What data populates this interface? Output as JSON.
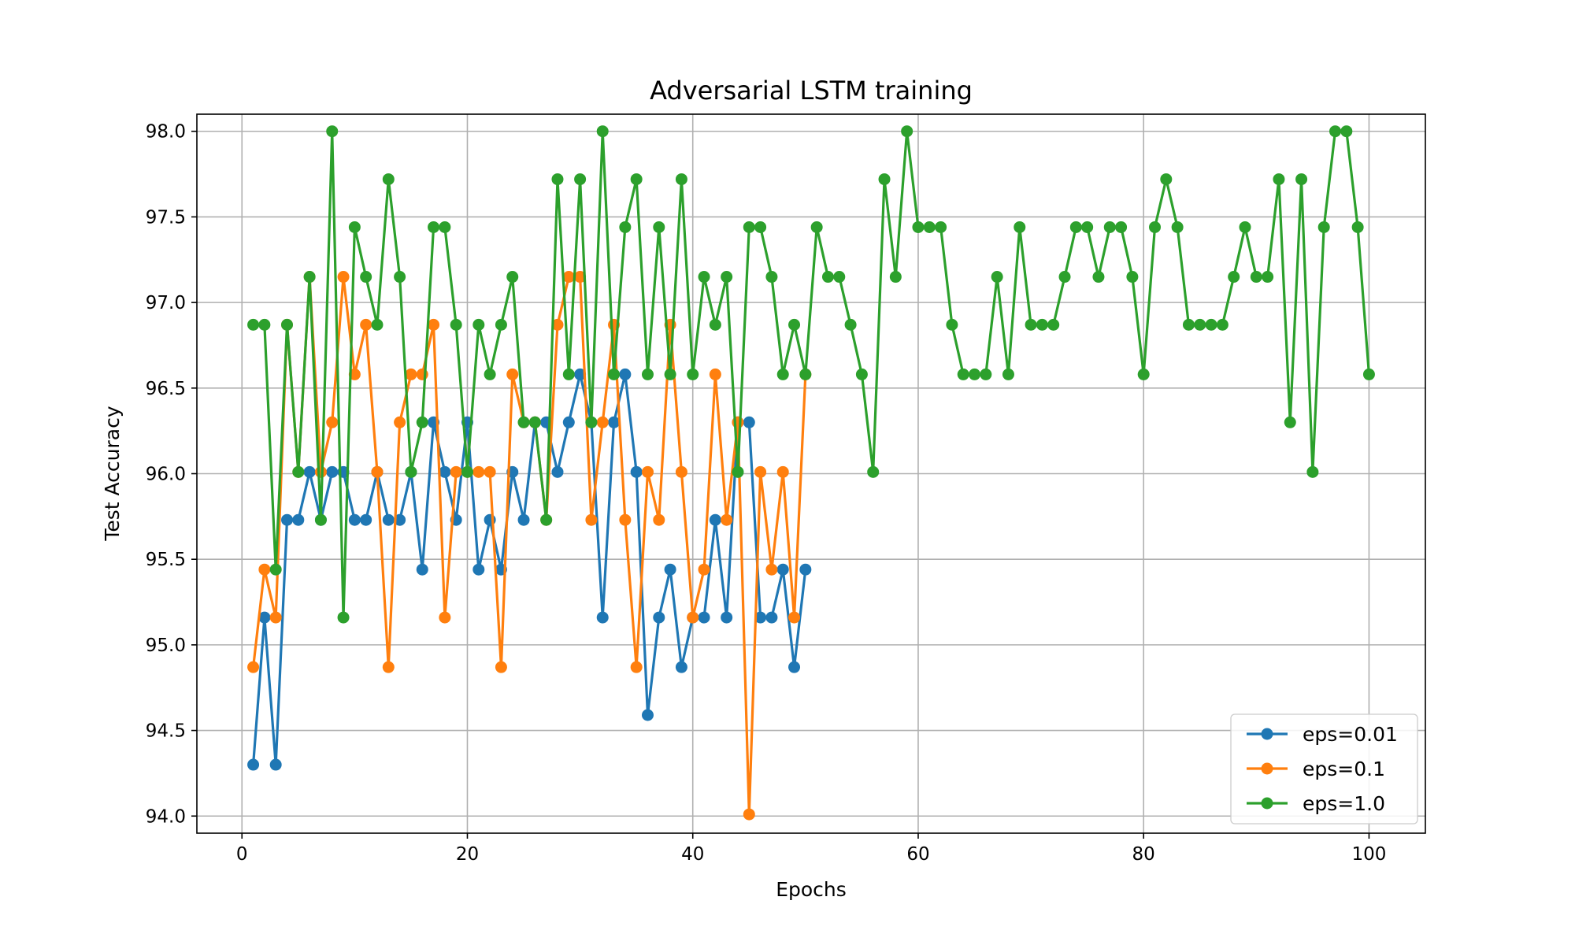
{
  "chart_data": {
    "type": "line",
    "title": "Adversarial LSTM training",
    "xlabel": "Epochs",
    "ylabel": "Test Accuracy",
    "xlim": [
      -4,
      105
    ],
    "ylim": [
      93.9,
      98.1
    ],
    "xticks": [
      0,
      20,
      40,
      60,
      80,
      100
    ],
    "yticks": [
      94.0,
      94.5,
      95.0,
      95.5,
      96.0,
      96.5,
      97.0,
      97.5,
      98.0
    ],
    "ytick_labels": [
      "94.0",
      "94.5",
      "95.0",
      "95.5",
      "96.0",
      "96.5",
      "97.0",
      "97.5",
      "98.0"
    ],
    "grid": true,
    "legend_position": "lower-right",
    "series": [
      {
        "name": "eps=0.01",
        "color": "#1f77b4",
        "x": [
          1,
          2,
          3,
          4,
          5,
          6,
          7,
          8,
          9,
          10,
          11,
          12,
          13,
          14,
          15,
          16,
          17,
          18,
          19,
          20,
          21,
          22,
          23,
          24,
          25,
          26,
          27,
          28,
          29,
          30,
          31,
          32,
          33,
          34,
          35,
          36,
          37,
          38,
          39,
          40,
          41,
          42,
          43,
          44,
          45,
          46,
          47,
          48,
          49,
          50
        ],
        "y": [
          94.3,
          95.16,
          94.3,
          95.73,
          95.73,
          96.01,
          95.73,
          96.01,
          96.01,
          95.73,
          95.73,
          96.01,
          95.73,
          95.73,
          96.01,
          95.44,
          96.3,
          96.01,
          95.73,
          96.3,
          95.44,
          95.73,
          95.44,
          96.01,
          95.73,
          96.3,
          96.3,
          96.01,
          96.3,
          96.58,
          96.3,
          95.16,
          96.3,
          96.58,
          96.01,
          94.59,
          95.16,
          95.44,
          94.87,
          95.16,
          95.16,
          95.73,
          95.16,
          96.3,
          96.3,
          95.16,
          95.16,
          95.44,
          94.87,
          95.44
        ]
      },
      {
        "name": "eps=0.1",
        "color": "#ff7f0e",
        "x": [
          1,
          2,
          3,
          4,
          5,
          6,
          7,
          8,
          9,
          10,
          11,
          12,
          13,
          14,
          15,
          16,
          17,
          18,
          19,
          20,
          21,
          22,
          23,
          24,
          25,
          26,
          27,
          28,
          29,
          30,
          31,
          32,
          33,
          34,
          35,
          36,
          37,
          38,
          39,
          40,
          41,
          42,
          43,
          44,
          45,
          46,
          47,
          48,
          49,
          50
        ],
        "y": [
          94.87,
          95.44,
          95.16,
          96.87,
          96.01,
          97.15,
          96.01,
          96.3,
          97.15,
          96.58,
          96.87,
          96.01,
          94.87,
          96.3,
          96.58,
          96.58,
          96.87,
          95.16,
          96.01,
          96.01,
          96.01,
          96.01,
          94.87,
          96.58,
          96.3,
          96.3,
          95.73,
          96.87,
          97.15,
          97.15,
          95.73,
          96.3,
          96.87,
          95.73,
          94.87,
          96.01,
          95.73,
          96.87,
          96.01,
          95.16,
          95.44,
          96.58,
          95.73,
          96.3,
          94.01,
          96.01,
          95.44,
          96.01,
          95.16,
          96.58
        ]
      },
      {
        "name": "eps=1.0",
        "color": "#2ca02c",
        "x": [
          1,
          2,
          3,
          4,
          5,
          6,
          7,
          8,
          9,
          10,
          11,
          12,
          13,
          14,
          15,
          16,
          17,
          18,
          19,
          20,
          21,
          22,
          23,
          24,
          25,
          26,
          27,
          28,
          29,
          30,
          31,
          32,
          33,
          34,
          35,
          36,
          37,
          38,
          39,
          40,
          41,
          42,
          43,
          44,
          45,
          46,
          47,
          48,
          49,
          50,
          51,
          52,
          53,
          54,
          55,
          56,
          57,
          58,
          59,
          60,
          61,
          62,
          63,
          64,
          65,
          66,
          67,
          68,
          69,
          70,
          71,
          72,
          73,
          74,
          75,
          76,
          77,
          78,
          79,
          80,
          81,
          82,
          83,
          84,
          85,
          86,
          87,
          88,
          89,
          90,
          91,
          92,
          93,
          94,
          95,
          96,
          97,
          98,
          99,
          100
        ],
        "y": [
          96.87,
          96.87,
          95.44,
          96.87,
          96.01,
          97.15,
          95.73,
          98.0,
          95.16,
          97.44,
          97.15,
          96.87,
          97.72,
          97.15,
          96.01,
          96.3,
          97.44,
          97.44,
          96.87,
          96.01,
          96.87,
          96.58,
          96.87,
          97.15,
          96.3,
          96.3,
          95.73,
          97.72,
          96.58,
          97.72,
          96.3,
          98.0,
          96.58,
          97.44,
          97.72,
          96.58,
          97.44,
          96.58,
          97.72,
          96.58,
          97.15,
          96.87,
          97.15,
          96.01,
          97.44,
          97.44,
          97.15,
          96.58,
          96.87,
          96.58,
          97.44,
          97.15,
          97.15,
          96.87,
          96.58,
          96.01,
          97.72,
          97.15,
          98.0,
          97.44,
          97.44,
          97.44,
          96.87,
          96.58,
          96.58,
          96.58,
          97.15,
          96.58,
          97.44,
          96.87,
          96.87,
          96.87,
          97.15,
          97.44,
          97.44,
          97.15,
          97.44,
          97.44,
          97.15,
          96.58,
          97.44,
          97.72,
          97.44,
          96.87,
          96.87,
          96.87,
          96.87,
          97.15,
          97.44,
          97.15,
          97.15,
          97.72,
          96.3,
          97.72,
          96.01,
          97.44,
          98.0,
          98.0,
          97.44,
          96.58
        ]
      }
    ]
  }
}
